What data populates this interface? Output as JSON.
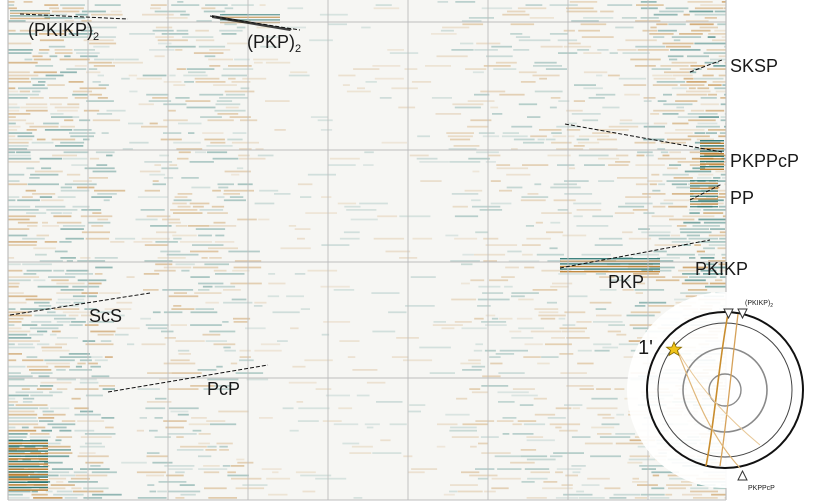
{
  "chart_data": {
    "type": "heatmap",
    "description_colors": {
      "positive": "#1f6f6a",
      "negative": "#b8761f",
      "background": "#f5f5f2",
      "grid": "#bdbdbd",
      "pick_line": "#111111"
    },
    "phase_labels": [
      {
        "key": "pkikp2",
        "main": "(PKIKP)",
        "sub": "2"
      },
      {
        "key": "pkp2",
        "main": "(PKP)",
        "sub": "2"
      },
      {
        "key": "sksp",
        "main": "SKSP"
      },
      {
        "key": "pkppcp",
        "main": "PKPPcP"
      },
      {
        "key": "pp",
        "main": "PP"
      },
      {
        "key": "pkikp",
        "main": "PKIKP"
      },
      {
        "key": "pkp",
        "main": "PKP"
      },
      {
        "key": "scs",
        "main": "ScS"
      },
      {
        "key": "pcp",
        "main": "PcP"
      }
    ],
    "event_label": "1'",
    "inset": {
      "labels": [
        {
          "key": "pkikp2",
          "main": "(PKIKP)",
          "sub": "2"
        },
        {
          "key": "pkppcp",
          "main": "PKPPcP"
        }
      ]
    }
  }
}
